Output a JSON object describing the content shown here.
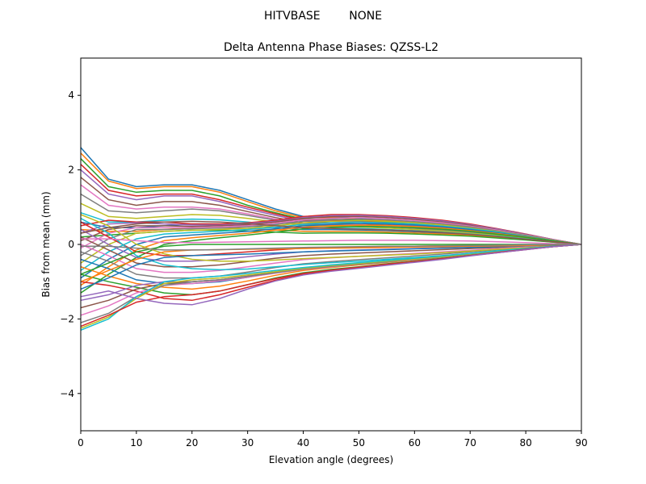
{
  "chart_data": {
    "type": "line",
    "suptitle": "HITVBASE        NONE",
    "title": "Delta Antenna Phase Biases: QZSS-L2",
    "xlabel": "Elevation angle (degrees)",
    "ylabel": "Bias from mean (mm)",
    "xlim": [
      0,
      90
    ],
    "ylim": [
      -5,
      5
    ],
    "xticks": [
      0,
      10,
      20,
      30,
      40,
      50,
      60,
      70,
      80,
      90
    ],
    "yticks": [
      -4,
      -2,
      0,
      2,
      4
    ],
    "grid": false,
    "legend": "none",
    "x": [
      0,
      5,
      10,
      15,
      20,
      25,
      30,
      35,
      40,
      45,
      50,
      55,
      60,
      65,
      70,
      75,
      80,
      85,
      90
    ],
    "series": [
      {
        "values": [
          2.6,
          1.75,
          1.55,
          1.6,
          1.6,
          1.45,
          1.2,
          0.95,
          0.75,
          0.75,
          0.7,
          0.65,
          0.6,
          0.55,
          0.45,
          0.35,
          0.25,
          0.12,
          0.0
        ]
      },
      {
        "values": [
          2.45,
          1.7,
          1.5,
          1.55,
          1.55,
          1.4,
          1.15,
          0.9,
          0.72,
          0.72,
          0.68,
          0.63,
          0.58,
          0.52,
          0.43,
          0.33,
          0.23,
          0.11,
          0.0
        ]
      },
      {
        "values": [
          2.3,
          1.55,
          1.4,
          1.45,
          1.45,
          1.3,
          1.05,
          0.85,
          0.68,
          0.68,
          0.65,
          0.6,
          0.55,
          0.5,
          0.41,
          0.32,
          0.22,
          0.11,
          0.0
        ]
      },
      {
        "values": [
          2.15,
          1.45,
          1.3,
          1.35,
          1.35,
          1.2,
          1.0,
          0.82,
          0.65,
          0.65,
          0.62,
          0.58,
          0.53,
          0.48,
          0.4,
          0.31,
          0.21,
          0.1,
          0.0
        ]
      },
      {
        "values": [
          2.0,
          1.35,
          1.2,
          1.3,
          1.3,
          1.15,
          0.95,
          0.78,
          0.62,
          0.62,
          0.6,
          0.55,
          0.5,
          0.45,
          0.38,
          0.3,
          0.2,
          0.1,
          0.0
        ]
      },
      {
        "values": [
          1.8,
          1.2,
          1.05,
          1.15,
          1.15,
          1.05,
          0.88,
          0.72,
          0.58,
          0.58,
          0.56,
          0.52,
          0.47,
          0.42,
          0.36,
          0.28,
          0.19,
          0.09,
          0.0
        ]
      },
      {
        "values": [
          1.6,
          1.05,
          0.95,
          1.0,
          1.0,
          0.95,
          0.82,
          0.68,
          0.55,
          0.55,
          0.53,
          0.49,
          0.45,
          0.4,
          0.34,
          0.27,
          0.18,
          0.09,
          0.0
        ]
      },
      {
        "values": [
          1.35,
          0.9,
          0.85,
          0.9,
          0.95,
          0.9,
          0.78,
          0.65,
          0.53,
          0.52,
          0.5,
          0.47,
          0.43,
          0.38,
          0.32,
          0.25,
          0.17,
          0.08,
          0.0
        ]
      },
      {
        "values": [
          1.1,
          0.75,
          0.7,
          0.75,
          0.8,
          0.78,
          0.7,
          0.6,
          0.5,
          0.49,
          0.47,
          0.44,
          0.4,
          0.36,
          0.3,
          0.24,
          0.16,
          0.08,
          0.0
        ]
      },
      {
        "values": [
          0.85,
          0.6,
          0.6,
          0.65,
          0.68,
          0.66,
          0.6,
          0.52,
          0.45,
          0.44,
          0.43,
          0.4,
          0.37,
          0.33,
          0.28,
          0.22,
          0.15,
          0.07,
          0.0
        ]
      },
      {
        "values": [
          0.6,
          0.45,
          0.45,
          0.5,
          0.55,
          0.55,
          0.5,
          0.45,
          0.4,
          0.4,
          0.39,
          0.37,
          0.34,
          0.3,
          0.26,
          0.2,
          0.14,
          0.07,
          0.0
        ]
      },
      {
        "values": [
          0.4,
          0.35,
          0.35,
          0.4,
          0.45,
          0.45,
          0.42,
          0.39,
          0.35,
          0.35,
          0.35,
          0.33,
          0.31,
          0.28,
          0.24,
          0.19,
          0.13,
          0.06,
          0.0
        ]
      },
      {
        "values": [
          0.2,
          0.25,
          0.3,
          0.35,
          0.38,
          0.38,
          0.36,
          0.33,
          0.3,
          0.31,
          0.31,
          0.3,
          0.28,
          0.25,
          0.22,
          0.17,
          0.12,
          0.06,
          0.0
        ]
      },
      {
        "values": [
          0.5,
          0.65,
          0.6,
          0.6,
          0.55,
          0.55,
          0.58,
          0.65,
          0.75,
          0.8,
          0.8,
          0.77,
          0.72,
          0.65,
          0.55,
          0.42,
          0.28,
          0.13,
          0.0
        ]
      },
      {
        "values": [
          0.3,
          0.55,
          0.58,
          0.55,
          0.52,
          0.52,
          0.56,
          0.62,
          0.72,
          0.77,
          0.78,
          0.75,
          0.7,
          0.63,
          0.53,
          0.41,
          0.27,
          0.13,
          0.0
        ]
      },
      {
        "values": [
          0.1,
          0.4,
          0.5,
          0.5,
          0.48,
          0.5,
          0.53,
          0.6,
          0.7,
          0.74,
          0.75,
          0.72,
          0.67,
          0.6,
          0.51,
          0.39,
          0.26,
          0.12,
          0.0
        ]
      },
      {
        "values": [
          -0.1,
          0.3,
          0.45,
          0.45,
          0.45,
          0.47,
          0.5,
          0.57,
          0.66,
          0.7,
          0.72,
          0.69,
          0.64,
          0.58,
          0.49,
          0.38,
          0.25,
          0.12,
          0.0
        ]
      },
      {
        "values": [
          -0.3,
          0.15,
          0.4,
          0.4,
          0.42,
          0.44,
          0.47,
          0.54,
          0.62,
          0.66,
          0.68,
          0.66,
          0.61,
          0.55,
          0.47,
          0.36,
          0.24,
          0.11,
          0.0
        ]
      },
      {
        "values": [
          -0.5,
          0.0,
          0.3,
          0.35,
          0.38,
          0.4,
          0.43,
          0.5,
          0.58,
          0.62,
          0.64,
          0.62,
          0.58,
          0.52,
          0.44,
          0.34,
          0.23,
          0.11,
          0.0
        ]
      },
      {
        "values": [
          -0.7,
          -0.2,
          0.15,
          0.28,
          0.32,
          0.35,
          0.4,
          0.46,
          0.54,
          0.58,
          0.6,
          0.58,
          0.55,
          0.49,
          0.42,
          0.33,
          0.22,
          0.1,
          0.0
        ]
      },
      {
        "values": [
          -0.9,
          -0.4,
          0.0,
          0.2,
          0.25,
          0.3,
          0.35,
          0.42,
          0.5,
          0.54,
          0.56,
          0.55,
          0.52,
          0.47,
          0.4,
          0.31,
          0.21,
          0.1,
          0.0
        ]
      },
      {
        "values": [
          -1.1,
          -0.6,
          -0.15,
          0.1,
          0.18,
          0.24,
          0.3,
          0.38,
          0.46,
          0.5,
          0.52,
          0.51,
          0.48,
          0.44,
          0.37,
          0.29,
          0.2,
          0.09,
          0.0
        ]
      },
      {
        "values": [
          -1.3,
          -0.8,
          -0.35,
          0.0,
          0.1,
          0.18,
          0.25,
          0.33,
          0.42,
          0.46,
          0.48,
          0.47,
          0.45,
          0.41,
          0.35,
          0.27,
          0.19,
          0.09,
          0.0
        ]
      },
      {
        "values": [
          0.6,
          0.2,
          -0.2,
          -0.3,
          -0.3,
          -0.25,
          -0.2,
          -0.15,
          -0.1,
          -0.08,
          -0.07,
          -0.06,
          -0.05,
          -0.04,
          -0.03,
          -0.02,
          -0.01,
          0.0,
          0.0
        ]
      },
      {
        "values": [
          0.4,
          0.0,
          -0.35,
          -0.45,
          -0.45,
          -0.4,
          -0.33,
          -0.26,
          -0.2,
          -0.17,
          -0.15,
          -0.13,
          -0.11,
          -0.09,
          -0.07,
          -0.05,
          -0.03,
          -0.01,
          0.0
        ]
      },
      {
        "values": [
          0.2,
          -0.15,
          -0.5,
          -0.6,
          -0.6,
          -0.55,
          -0.46,
          -0.37,
          -0.3,
          -0.26,
          -0.23,
          -0.2,
          -0.17,
          -0.14,
          -0.11,
          -0.08,
          -0.05,
          -0.02,
          0.0
        ]
      },
      {
        "values": [
          0.0,
          -0.3,
          -0.65,
          -0.75,
          -0.75,
          -0.7,
          -0.6,
          -0.5,
          -0.41,
          -0.36,
          -0.32,
          -0.28,
          -0.24,
          -0.2,
          -0.16,
          -0.11,
          -0.07,
          -0.03,
          0.0
        ]
      },
      {
        "values": [
          -0.2,
          -0.45,
          -0.8,
          -0.9,
          -0.9,
          -0.85,
          -0.74,
          -0.62,
          -0.52,
          -0.46,
          -0.41,
          -0.36,
          -0.31,
          -0.26,
          -0.2,
          -0.14,
          -0.09,
          -0.04,
          0.0
        ]
      },
      {
        "values": [
          0.8,
          0.5,
          0.0,
          -0.25,
          -0.4,
          -0.45,
          -0.45,
          -0.42,
          -0.38,
          -0.35,
          -0.32,
          -0.29,
          -0.26,
          -0.22,
          -0.18,
          -0.13,
          -0.09,
          -0.04,
          0.0
        ]
      },
      {
        "values": [
          0.7,
          0.3,
          -0.3,
          -0.55,
          -0.65,
          -0.68,
          -0.66,
          -0.6,
          -0.54,
          -0.49,
          -0.45,
          -0.4,
          -0.35,
          -0.3,
          -0.24,
          -0.17,
          -0.11,
          -0.05,
          0.0
        ]
      },
      {
        "values": [
          -0.4,
          -0.65,
          -0.95,
          -1.05,
          -1.05,
          -1.0,
          -0.88,
          -0.75,
          -0.63,
          -0.56,
          -0.5,
          -0.44,
          -0.38,
          -0.32,
          -0.25,
          -0.18,
          -0.11,
          -0.05,
          0.0
        ]
      },
      {
        "values": [
          -0.6,
          -0.85,
          -1.05,
          -1.15,
          -1.2,
          -1.12,
          -0.98,
          -0.83,
          -0.7,
          -0.62,
          -0.55,
          -0.48,
          -0.42,
          -0.35,
          -0.27,
          -0.19,
          -0.12,
          -0.05,
          0.0
        ]
      },
      {
        "values": [
          -0.8,
          -1.0,
          -1.15,
          -1.3,
          -1.35,
          -1.25,
          -1.08,
          -0.9,
          -0.76,
          -0.67,
          -0.6,
          -0.52,
          -0.45,
          -0.37,
          -0.29,
          -0.21,
          -0.13,
          -0.06,
          0.0
        ]
      },
      {
        "values": [
          -1.0,
          -1.1,
          -1.25,
          -1.45,
          -1.5,
          -1.35,
          -1.15,
          -0.96,
          -0.8,
          -0.71,
          -0.63,
          -0.55,
          -0.47,
          -0.39,
          -0.3,
          -0.22,
          -0.14,
          -0.06,
          0.0
        ]
      },
      {
        "values": [
          -1.5,
          -1.35,
          -1.1,
          -1.0,
          -1.0,
          -0.95,
          -0.85,
          -0.74,
          -0.64,
          -0.57,
          -0.51,
          -0.45,
          -0.39,
          -0.32,
          -0.25,
          -0.18,
          -0.11,
          -0.05,
          0.0
        ]
      },
      {
        "values": [
          -1.7,
          -1.5,
          -1.2,
          -1.05,
          -1.0,
          -0.95,
          -0.86,
          -0.75,
          -0.65,
          -0.58,
          -0.52,
          -0.46,
          -0.4,
          -0.33,
          -0.26,
          -0.18,
          -0.12,
          -0.05,
          0.0
        ]
      },
      {
        "values": [
          -1.9,
          -1.65,
          -1.3,
          -1.1,
          -1.05,
          -0.98,
          -0.88,
          -0.77,
          -0.67,
          -0.6,
          -0.53,
          -0.47,
          -0.41,
          -0.34,
          -0.26,
          -0.19,
          -0.12,
          -0.05,
          0.0
        ]
      },
      {
        "values": [
          -2.1,
          -1.85,
          -1.4,
          -1.1,
          -1.0,
          -0.95,
          -0.86,
          -0.76,
          -0.66,
          -0.59,
          -0.53,
          -0.47,
          -0.4,
          -0.34,
          -0.26,
          -0.19,
          -0.12,
          -0.05,
          0.0
        ]
      },
      {
        "values": [
          -2.25,
          -1.95,
          -1.45,
          -1.05,
          -0.95,
          -0.9,
          -0.82,
          -0.73,
          -0.64,
          -0.57,
          -0.51,
          -0.45,
          -0.39,
          -0.33,
          -0.25,
          -0.18,
          -0.11,
          -0.05,
          0.0
        ]
      },
      {
        "values": [
          -2.3,
          -2.0,
          -1.4,
          -1.0,
          -0.9,
          -0.85,
          -0.78,
          -0.7,
          -0.62,
          -0.55,
          -0.49,
          -0.43,
          -0.37,
          -0.31,
          -0.24,
          -0.17,
          -0.11,
          -0.05,
          0.0
        ]
      },
      {
        "values": [
          -1.2,
          -0.9,
          -0.55,
          -0.35,
          -0.3,
          -0.28,
          -0.26,
          -0.23,
          -0.2,
          -0.18,
          -0.16,
          -0.14,
          -0.12,
          -0.1,
          -0.08,
          -0.06,
          -0.04,
          -0.02,
          0.0
        ]
      },
      {
        "values": [
          -1.0,
          -0.7,
          -0.4,
          -0.2,
          -0.15,
          -0.14,
          -0.13,
          -0.12,
          -0.11,
          -0.1,
          -0.09,
          -0.08,
          -0.07,
          -0.06,
          -0.05,
          -0.04,
          -0.03,
          -0.01,
          0.0
        ]
      },
      {
        "values": [
          -0.8,
          -0.5,
          -0.2,
          -0.05,
          0.0,
          0.0,
          0.0,
          0.0,
          0.0,
          0.0,
          0.0,
          0.0,
          0.0,
          0.0,
          0.0,
          0.0,
          0.0,
          0.0,
          0.0
        ]
      },
      {
        "values": [
          -2.2,
          -1.9,
          -1.55,
          -1.4,
          -1.35,
          -1.25,
          -1.08,
          -0.92,
          -0.78,
          -0.69,
          -0.61,
          -0.53,
          -0.46,
          -0.38,
          -0.3,
          -0.21,
          -0.13,
          -0.06,
          0.0
        ]
      },
      {
        "values": [
          -1.4,
          -1.25,
          -1.45,
          -1.58,
          -1.62,
          -1.45,
          -1.2,
          -0.98,
          -0.82,
          -0.72,
          -0.64,
          -0.56,
          -0.48,
          -0.4,
          -0.31,
          -0.22,
          -0.14,
          -0.06,
          0.0
        ]
      },
      {
        "values": [
          0.3,
          0.45,
          0.55,
          0.6,
          0.62,
          0.6,
          0.56,
          0.5,
          0.45,
          0.43,
          0.41,
          0.39,
          0.36,
          0.32,
          0.27,
          0.21,
          0.14,
          0.07,
          0.0
        ]
      },
      {
        "values": [
          0.15,
          0.15,
          0.1,
          0.05,
          0.05,
          0.06,
          0.07,
          0.08,
          0.09,
          0.1,
          0.11,
          0.11,
          0.11,
          0.1,
          0.09,
          0.07,
          0.05,
          0.02,
          0.0
        ]
      },
      {
        "values": [
          -0.05,
          -0.05,
          -0.1,
          -0.15,
          -0.15,
          -0.14,
          -0.12,
          -0.1,
          -0.08,
          -0.07,
          -0.06,
          -0.05,
          -0.05,
          -0.04,
          -0.03,
          -0.02,
          -0.01,
          0.0,
          0.0
        ]
      }
    ]
  }
}
